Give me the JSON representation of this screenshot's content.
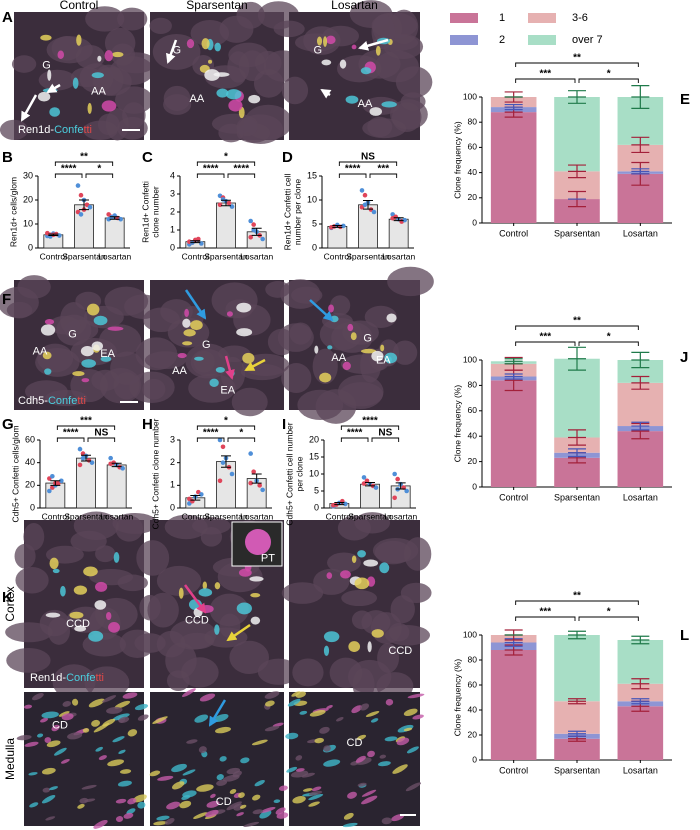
{
  "panel_letters": [
    "A",
    "B",
    "C",
    "D",
    "E",
    "F",
    "G",
    "H",
    "I",
    "J",
    "K",
    "L"
  ],
  "image_panels": [
    {
      "column_titles": [
        "Control",
        "Sparsentan",
        "Losartan"
      ],
      "stain": [
        "Ren1d-",
        "Confe",
        "tti"
      ],
      "images": [
        {
          "labels": [
            "G",
            "AA"
          ]
        },
        {
          "labels": [
            "G",
            "AA"
          ]
        },
        {
          "labels": [
            "G",
            "AA"
          ]
        }
      ]
    },
    {
      "stain": [
        "Cdh5-",
        "Confe",
        "tti"
      ],
      "images": [
        {
          "labels": [
            "G",
            "AA",
            "EA"
          ]
        },
        {
          "labels": [
            "G",
            "AA",
            "EA"
          ]
        },
        {
          "labels": [
            "G",
            "AA",
            "EA"
          ]
        }
      ]
    },
    {
      "row_titles": [
        "Cortex",
        "Medulla"
      ],
      "stain": [
        "Ren1d-",
        "Confe",
        "tti"
      ],
      "images": [
        {
          "labels": [
            "CCD"
          ]
        },
        {
          "labels": [
            "CCD",
            "PT"
          ]
        },
        {
          "labels": [
            "CCD"
          ]
        },
        {
          "labels": [
            "CD"
          ]
        },
        {
          "labels": [
            "CD"
          ]
        },
        {
          "labels": [
            "CD"
          ]
        }
      ]
    }
  ],
  "chart_data": [
    {
      "type": "bar",
      "ylabel": [
        "Ren1d+ cells/glom"
      ],
      "categories": [
        "Control",
        "Sparsentan",
        "Losartan"
      ],
      "values": [
        5.5,
        18,
        12.5
      ],
      "errors": [
        0.3,
        2,
        0.5
      ],
      "points": [
        [
          5,
          5.5,
          6,
          5.8,
          5.2,
          6.2,
          4.8,
          5.5
        ],
        [
          26,
          22,
          20,
          18,
          17,
          15,
          14,
          16
        ],
        [
          12,
          13,
          13.5,
          12.5,
          12,
          14,
          12.8
        ]
      ],
      "point_colors": [
        "#4f8fd8",
        "#e0455a"
      ],
      "ylim": [
        0,
        30
      ],
      "yticks": [
        0,
        10,
        20,
        30
      ],
      "significance": [
        "****",
        "*",
        "**"
      ]
    },
    {
      "type": "bar",
      "ylabel": [
        "Ren1d+ Confetti",
        "clone number"
      ],
      "categories": [
        "Control",
        "Sparsentan",
        "Losartan"
      ],
      "values": [
        0.35,
        2.5,
        0.9
      ],
      "errors": [
        0.05,
        0.15,
        0.2
      ],
      "points": [
        [
          0.2,
          0.3,
          0.4,
          0.5,
          0.25,
          0.35,
          0.3,
          0.45
        ],
        [
          2.9,
          2.8,
          2.6,
          2.5,
          2.3,
          2.4,
          2.7
        ],
        [
          1.5,
          1.3,
          0.9,
          0.7,
          0.5,
          0.6,
          1.0
        ]
      ],
      "point_colors": [
        "#4f8fd8",
        "#e0455a"
      ],
      "ylim": [
        0,
        4
      ],
      "yticks": [
        0,
        1,
        2,
        3,
        4
      ],
      "significance": [
        "****",
        "****",
        "*"
      ]
    },
    {
      "type": "bar",
      "ylabel": [
        "Ren1d+ Confetti cell",
        "number per clone"
      ],
      "categories": [
        "Control",
        "Sparsentan",
        "Losartan"
      ],
      "values": [
        4.5,
        9,
        6
      ],
      "errors": [
        0.2,
        0.9,
        0.3
      ],
      "points": [
        [
          4.2,
          4.5,
          4.8,
          4.4,
          4.6,
          4.3
        ],
        [
          12,
          11,
          9.5,
          8,
          7.5,
          8.5,
          9
        ],
        [
          7,
          6.5,
          6,
          5.5,
          5.8,
          6.2
        ]
      ],
      "point_colors": [
        "#4f8fd8",
        "#e0455a"
      ],
      "ylim": [
        0,
        15
      ],
      "yticks": [
        0,
        5,
        10,
        15
      ],
      "significance": [
        "****",
        "***",
        "NS"
      ]
    },
    {
      "type": "bar",
      "ylabel": [
        "Cdh5+ Confetti cells/glom"
      ],
      "categories": [
        "Control",
        "Sparsentan",
        "Losartan"
      ],
      "values": [
        22,
        44,
        38
      ],
      "errors": [
        2,
        2.5,
        1.5
      ],
      "points": [
        [
          15,
          18,
          20,
          22,
          24,
          26,
          28,
          22
        ],
        [
          52,
          48,
          46,
          42,
          40,
          38,
          44
        ],
        [
          44,
          40,
          38,
          36,
          35,
          39
        ]
      ],
      "point_colors": [
        "#4f8fd8",
        "#e0455a"
      ],
      "ylim": [
        0,
        60
      ],
      "yticks": [
        0,
        20,
        40,
        60
      ],
      "significance": [
        "****",
        "NS",
        "***"
      ]
    },
    {
      "type": "bar",
      "ylabel": [
        "Cdh5+ Confetti clone number"
      ],
      "categories": [
        "Control",
        "Sparsentan",
        "Losartan"
      ],
      "values": [
        0.45,
        2.05,
        1.3
      ],
      "errors": [
        0.1,
        0.25,
        0.2
      ],
      "points": [
        [
          0.2,
          0.3,
          0.5,
          0.7,
          0.6,
          0.4
        ],
        [
          3,
          2.7,
          2.2,
          1.8,
          1.5,
          1.2,
          2.0
        ],
        [
          2.4,
          1.6,
          1.2,
          1.0,
          0.8,
          1.1
        ]
      ],
      "point_colors": [
        "#4f8fd8",
        "#e0455a"
      ],
      "ylim": [
        0,
        3
      ],
      "yticks": [
        0,
        1,
        2,
        3
      ],
      "significance": [
        "****",
        "*",
        "*"
      ]
    },
    {
      "type": "bar",
      "ylabel": [
        "Cdh5+ Confetti cell number",
        "per clone"
      ],
      "categories": [
        "Control",
        "Sparsentan",
        "Losartan"
      ],
      "values": [
        1.3,
        7,
        6.5
      ],
      "errors": [
        0.3,
        0.5,
        0.9
      ],
      "points": [
        [
          0.5,
          1,
          1.5,
          2,
          1.2,
          0.8
        ],
        [
          9,
          8,
          7,
          6.5,
          6,
          7.2
        ],
        [
          10,
          8.5,
          7,
          6,
          5,
          3,
          5.5
        ]
      ],
      "point_colors": [
        "#4f8fd8",
        "#e0455a"
      ],
      "ylim": [
        0,
        20
      ],
      "yticks": [
        0,
        5,
        10,
        15,
        20
      ],
      "significance": [
        "****",
        "NS",
        "****"
      ]
    },
    {
      "type": "stacked_bar",
      "ylabel": [
        "Clone frequency (%)"
      ],
      "categories": [
        "Control",
        "Sparsentan",
        "Losartan"
      ],
      "series": [
        {
          "name": "1",
          "color": "#c97498",
          "values": [
            88,
            19,
            39
          ],
          "errors": [
            4,
            6,
            9
          ],
          "error_color": "#a3203a"
        },
        {
          "name": "2",
          "color": "#8e95d4",
          "values": [
            4,
            0,
            2
          ],
          "errors": [
            2,
            0,
            2
          ],
          "error_color": "#4656b8"
        },
        {
          "name": "3-6",
          "color": "#e6b1b1",
          "values": [
            8,
            22,
            21
          ],
          "errors": [
            4,
            5,
            6
          ],
          "error_color": "#a3203a"
        },
        {
          "name": "over 7",
          "color": "#a8dec6",
          "values": [
            0,
            59,
            38
          ],
          "errors": [
            0,
            5,
            9
          ],
          "error_color": "#1f7a4a"
        }
      ],
      "ylim": [
        0,
        100
      ],
      "yticks": [
        0,
        20,
        40,
        60,
        80,
        100
      ],
      "significance": [
        "***",
        "*",
        "**"
      ]
    },
    {
      "type": "stacked_bar",
      "ylabel": [
        "Clone frequency (%)"
      ],
      "categories": [
        "Control",
        "Sparsentan",
        "Losartan"
      ],
      "series": [
        {
          "name": "1",
          "color": "#c97498",
          "values": [
            84,
            23,
            44
          ],
          "errors": [
            8,
            4,
            6
          ],
          "error_color": "#a3203a"
        },
        {
          "name": "2",
          "color": "#8e95d4",
          "values": [
            3,
            4,
            4
          ],
          "errors": [
            2,
            3,
            3
          ],
          "error_color": "#4656b8"
        },
        {
          "name": "3-6",
          "color": "#e6b1b1",
          "values": [
            10,
            12,
            34
          ],
          "errors": [
            5,
            6,
            5
          ],
          "error_color": "#a3203a"
        },
        {
          "name": "over 7",
          "color": "#a8dec6",
          "values": [
            2,
            62,
            18
          ],
          "errors": [
            2,
            9,
            6
          ],
          "error_color": "#1f7a4a"
        }
      ],
      "ylim": [
        0,
        100
      ],
      "yticks": [
        0,
        20,
        40,
        60,
        80,
        100
      ],
      "significance": [
        "***",
        "*",
        "**"
      ]
    },
    {
      "type": "stacked_bar",
      "ylabel": [
        "Clone frequency (%)"
      ],
      "categories": [
        "Control",
        "Sparsentan",
        "Losartan"
      ],
      "series": [
        {
          "name": "1",
          "color": "#c97498",
          "values": [
            88,
            17,
            43
          ],
          "errors": [
            4,
            2,
            4
          ],
          "error_color": "#a3203a"
        },
        {
          "name": "2",
          "color": "#8e95d4",
          "values": [
            6,
            4,
            4
          ],
          "errors": [
            3,
            2,
            2
          ],
          "error_color": "#4656b8"
        },
        {
          "name": "3-6",
          "color": "#e6b1b1",
          "values": [
            6,
            26,
            14
          ],
          "errors": [
            4,
            2,
            4
          ],
          "error_color": "#a3203a"
        },
        {
          "name": "over 7",
          "color": "#a8dec6",
          "values": [
            0,
            53,
            35
          ],
          "errors": [
            0,
            3,
            3
          ],
          "error_color": "#1f7a4a"
        }
      ],
      "ylim": [
        0,
        100
      ],
      "yticks": [
        0,
        20,
        40,
        60,
        80,
        100
      ],
      "significance": [
        "***",
        "*",
        "**"
      ]
    }
  ]
}
